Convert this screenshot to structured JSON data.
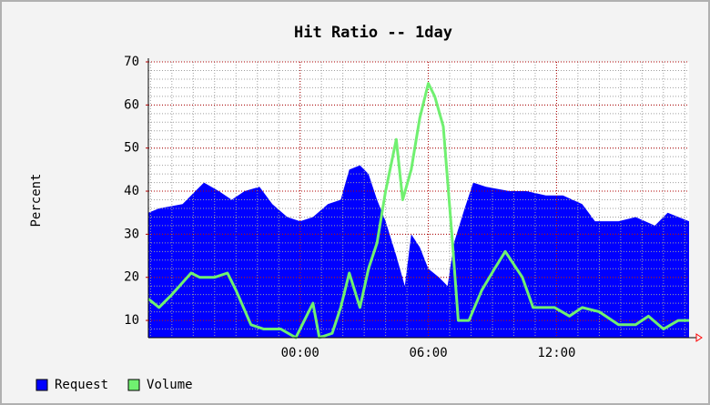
{
  "chart_data": {
    "type": "area_line",
    "title": "Hit Ratio -- 1day",
    "y_label": "Percent",
    "xlim": [
      -7.1,
      18.2
    ],
    "xticks": [
      {
        "value": 0,
        "label": "00:00"
      },
      {
        "value": 6,
        "label": "06:00"
      },
      {
        "value": 12,
        "label": "12:00"
      }
    ],
    "x_minor_ticks": [
      -7,
      -6,
      -5,
      -4,
      -3,
      -2,
      -1,
      0,
      1,
      2,
      3,
      4,
      5,
      6,
      7,
      8,
      9,
      10,
      11,
      12,
      13,
      14,
      15,
      16,
      17,
      18
    ],
    "ylim": [
      6,
      70
    ],
    "yticks": [
      10,
      20,
      30,
      40,
      50,
      60,
      70
    ],
    "y_minor_ticks": [
      8,
      10,
      12,
      14,
      16,
      18,
      20,
      22,
      24,
      26,
      28,
      30,
      32,
      34,
      36,
      38,
      40,
      42,
      44,
      46,
      48,
      50,
      52,
      54,
      56,
      58,
      60,
      62,
      64,
      66,
      68,
      70
    ],
    "grid": true,
    "series": [
      {
        "name": "Request",
        "color": "#0000ff",
        "style": "area",
        "x": [
          -7.1,
          -6.6,
          -5.5,
          -4.9,
          -4.5,
          -3.8,
          -3.2,
          -2.6,
          -1.9,
          -1.3,
          -0.6,
          0,
          0.6,
          1.3,
          1.9,
          2.3,
          2.8,
          3.2,
          3.6,
          4,
          4.5,
          4.9,
          5.2,
          5.6,
          6,
          6.5,
          6.9,
          7.2,
          7.7,
          8.1,
          8.7,
          9.8,
          10.6,
          11.5,
          12.3,
          13.2,
          13.8,
          14.9,
          15.7,
          16.6,
          17.2,
          18.2
        ],
        "values": [
          35,
          36,
          37,
          40,
          42,
          40,
          38,
          40,
          41,
          37,
          34,
          33,
          34,
          37,
          38,
          45,
          46,
          44,
          38,
          33,
          25,
          18,
          30,
          27,
          22,
          20,
          18,
          28,
          36,
          42,
          41,
          40,
          40,
          39,
          39,
          37,
          33,
          33,
          34,
          32,
          35,
          33
        ]
      },
      {
        "name": "Volume",
        "color": "#70f070",
        "style": "line",
        "x": [
          -7.1,
          -6.6,
          -6,
          -5.1,
          -4.7,
          -4,
          -3.4,
          -3,
          -2.3,
          -1.7,
          -0.9,
          -0.2,
          0.4,
          0.6,
          0.9,
          1.5,
          1.9,
          2.3,
          2.8,
          3.2,
          3.6,
          4,
          4.5,
          4.8,
          5.2,
          5.6,
          6,
          6.3,
          6.7,
          7.1,
          7.4,
          7.9,
          8.5,
          9.1,
          9.6,
          10,
          10.4,
          10.9,
          11.9,
          12.6,
          13.2,
          14,
          14.9,
          15.7,
          16.3,
          17,
          17.7,
          18.2
        ],
        "values": [
          15,
          13,
          16,
          21,
          20,
          20,
          21,
          17,
          9,
          8,
          8,
          6,
          12,
          14,
          6,
          7,
          13,
          21,
          13,
          22,
          28,
          40,
          52,
          38,
          45,
          57,
          65,
          62,
          55,
          30,
          10,
          10,
          17,
          22,
          26,
          23,
          20,
          13,
          13,
          11,
          13,
          12,
          9,
          9,
          11,
          8,
          10,
          10
        ]
      }
    ]
  }
}
